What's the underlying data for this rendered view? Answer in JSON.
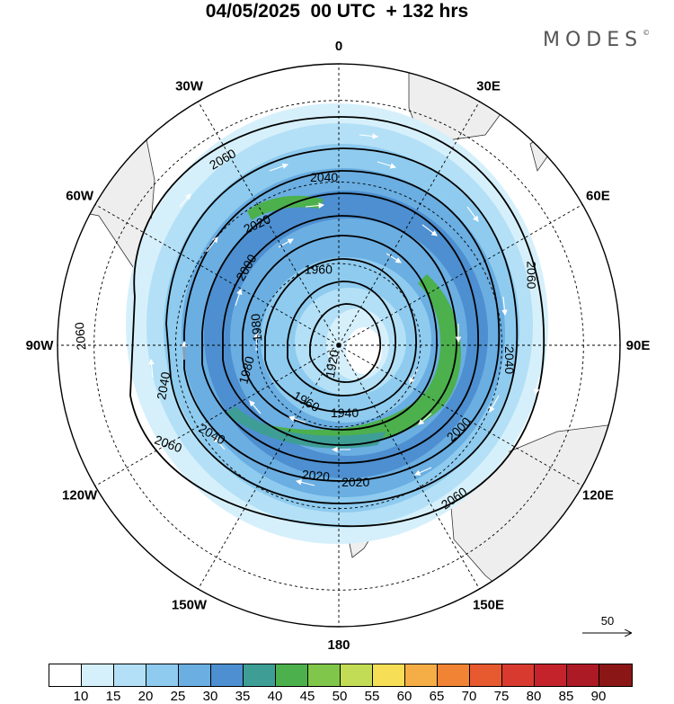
{
  "title": "04/05/2025  00 UTC  + 132 hrs",
  "brand": "MODES",
  "brand_mark": "©",
  "longitude_labels": [
    {
      "label": "0",
      "deg": 0
    },
    {
      "label": "30E",
      "deg": 30
    },
    {
      "label": "60E",
      "deg": 60
    },
    {
      "label": "90E",
      "deg": 90
    },
    {
      "label": "120E",
      "deg": 120
    },
    {
      "label": "150E",
      "deg": 150
    },
    {
      "label": "180",
      "deg": 180
    },
    {
      "label": "150W",
      "deg": 210
    },
    {
      "label": "120W",
      "deg": 240
    },
    {
      "label": "90W",
      "deg": 270
    },
    {
      "label": "60W",
      "deg": 300
    },
    {
      "label": "30W",
      "deg": 330
    }
  ],
  "contour_labels": [
    {
      "text": "2060",
      "lon": -32,
      "r": 0.78,
      "rot": -30
    },
    {
      "text": "2040",
      "lon": -5,
      "r": 0.6,
      "rot": 0
    },
    {
      "text": "2020",
      "lon": -34,
      "r": 0.52,
      "rot": -25
    },
    {
      "text": "2000",
      "lon": -50,
      "r": 0.43,
      "rot": -60
    },
    {
      "text": "1960",
      "lon": -15,
      "r": 0.28,
      "rot": 0
    },
    {
      "text": "1980",
      "lon": -78,
      "r": 0.3,
      "rot": -95
    },
    {
      "text": "1920",
      "lon": -160,
      "r": 0.07,
      "rot": -80
    },
    {
      "text": "1940",
      "lon": 175,
      "r": 0.24,
      "rot": 0
    },
    {
      "text": "1960",
      "lon": -150,
      "r": 0.23,
      "rot": 30
    },
    {
      "text": "1980",
      "lon": -105,
      "r": 0.34,
      "rot": -75
    },
    {
      "text": "2040",
      "lon": -103,
      "r": 0.64,
      "rot": -80
    },
    {
      "text": "2060",
      "lon": -120,
      "r": 0.7,
      "rot": 20
    },
    {
      "text": "2040",
      "lon": -125,
      "r": 0.55,
      "rot": 30
    },
    {
      "text": "2020",
      "lon": -170,
      "r": 0.47,
      "rot": 5
    },
    {
      "text": "2020",
      "lon": 173,
      "r": 0.49,
      "rot": 0
    },
    {
      "text": "2060",
      "lon": 70,
      "r": 0.73,
      "rot": 90
    },
    {
      "text": "2040",
      "lon": 95,
      "r": 0.61,
      "rot": 90
    },
    {
      "text": "2000",
      "lon": 125,
      "r": 0.52,
      "rot": -45
    },
    {
      "text": "2060",
      "lon": 143,
      "r": 0.68,
      "rot": -35
    },
    {
      "text": "2060",
      "lon": -88,
      "r": 0.92,
      "rot": -95
    }
  ],
  "reference_vector": {
    "label": "50"
  },
  "colorbar": {
    "colors": [
      "#ffffff",
      "#d6f0fb",
      "#b3e0f6",
      "#8ecbef",
      "#6aaee2",
      "#4d8fd0",
      "#3e9e96",
      "#4cb04c",
      "#80c64a",
      "#c2dd55",
      "#f6de56",
      "#f5ad45",
      "#f08434",
      "#e7592e",
      "#d83a2f",
      "#c4232c",
      "#ac1a26",
      "#8b1616"
    ],
    "ticks": [
      "10",
      "15",
      "20",
      "25",
      "30",
      "35",
      "40",
      "45",
      "50",
      "55",
      "60",
      "65",
      "70",
      "75",
      "80",
      "85",
      "90"
    ]
  },
  "colors": {
    "land": "#eeeeee",
    "coast": "#333333",
    "contour": "#000000",
    "wind_arrow": "#ffffff"
  }
}
